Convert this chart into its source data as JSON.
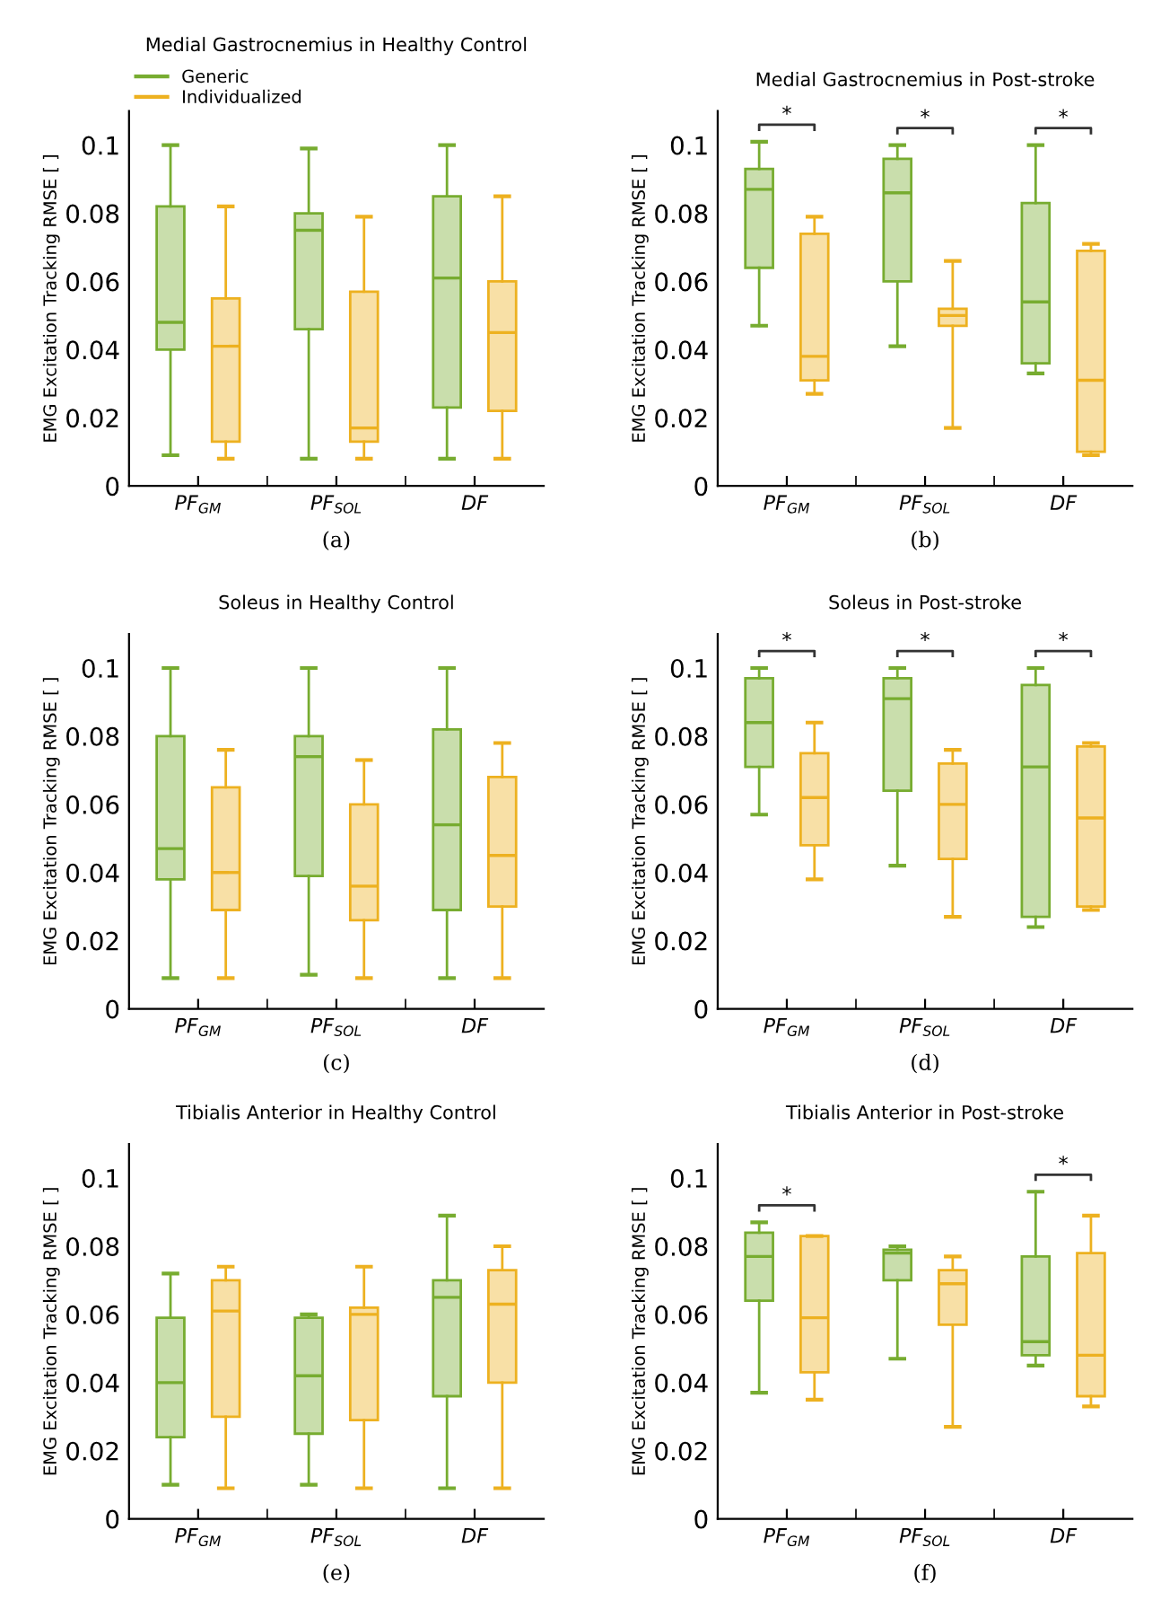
{
  "chart_data": [
    {
      "type": "box",
      "title": "Medial Gastrocnemius in Healthy Control",
      "ylabel": "EMG Excitation Tracking RMSE [ ]",
      "categories": [
        "PF$_{GM}$",
        "PF$_{SOL}$",
        "DF"
      ],
      "ylim": [
        0,
        0.11
      ],
      "yticks": [
        0,
        0.02,
        0.04,
        0.06,
        0.08,
        0.1
      ],
      "legend": "top left",
      "series": [
        {
          "name": "Generic",
          "color": "#77ac30",
          "boxes": [
            {
              "low": 0.009,
              "q1": 0.04,
              "median": 0.048,
              "q3": 0.082,
              "high": 0.1
            },
            {
              "low": 0.008,
              "q1": 0.046,
              "median": 0.075,
              "q3": 0.08,
              "high": 0.099
            },
            {
              "low": 0.008,
              "q1": 0.023,
              "median": 0.061,
              "q3": 0.085,
              "high": 0.1
            }
          ]
        },
        {
          "name": "Individualized",
          "color": "#edb120",
          "boxes": [
            {
              "low": 0.008,
              "q1": 0.013,
              "median": 0.041,
              "q3": 0.055,
              "high": 0.082
            },
            {
              "low": 0.008,
              "q1": 0.013,
              "median": 0.017,
              "q3": 0.057,
              "high": 0.079
            },
            {
              "low": 0.008,
              "q1": 0.022,
              "median": 0.045,
              "q3": 0.06,
              "high": 0.085
            }
          ]
        }
      ],
      "annotations": [
        "(a)"
      ]
    },
    {
      "type": "box",
      "title": "Medial Gastrocnemius in Post-stroke",
      "ylabel": "EMG Excitation Tracking RMSE [ ]",
      "categories": [
        "PF$_{GM}$",
        "PF$_{SOL}$",
        "DF"
      ],
      "ylim": [
        0,
        0.11
      ],
      "yticks": [
        0,
        0.02,
        0.04,
        0.06,
        0.08,
        0.1
      ],
      "series": [
        {
          "color": "#77ac30",
          "boxes": [
            {
              "low": 0.047,
              "q1": 0.064,
              "median": 0.087,
              "q3": 0.093,
              "high": 0.101
            },
            {
              "low": 0.041,
              "q1": 0.06,
              "median": 0.086,
              "q3": 0.096,
              "high": 0.1
            },
            {
              "low": 0.033,
              "q1": 0.036,
              "median": 0.054,
              "q3": 0.083,
              "high": 0.1
            }
          ]
        },
        {
          "color": "#edb120",
          "boxes": [
            {
              "low": 0.027,
              "q1": 0.031,
              "median": 0.038,
              "q3": 0.074,
              "high": 0.079
            },
            {
              "low": 0.017,
              "q1": 0.047,
              "median": 0.05,
              "q3": 0.052,
              "high": 0.066
            },
            {
              "low": 0.009,
              "q1": 0.01,
              "median": 0.031,
              "q3": 0.069,
              "high": 0.071
            }
          ]
        }
      ],
      "annotations": [
        "(b)",
        "*",
        "*",
        "*"
      ]
    },
    {
      "type": "box",
      "title": "Soleus in Healthy Control",
      "ylabel": "EMG Excitation Tracking RMSE [ ]",
      "categories": [
        "PF$_{GM}$",
        "PF$_{SOL}$",
        "DF"
      ],
      "ylim": [
        0,
        0.11
      ],
      "yticks": [
        0,
        0.02,
        0.04,
        0.06,
        0.08,
        0.1
      ],
      "series": [
        {
          "color": "#77ac30",
          "boxes": [
            {
              "low": 0.009,
              "q1": 0.038,
              "median": 0.047,
              "q3": 0.08,
              "high": 0.1
            },
            {
              "low": 0.01,
              "q1": 0.039,
              "median": 0.074,
              "q3": 0.08,
              "high": 0.1
            },
            {
              "low": 0.009,
              "q1": 0.029,
              "median": 0.054,
              "q3": 0.082,
              "high": 0.1
            }
          ]
        },
        {
          "color": "#edb120",
          "boxes": [
            {
              "low": 0.009,
              "q1": 0.029,
              "median": 0.04,
              "q3": 0.065,
              "high": 0.076
            },
            {
              "low": 0.009,
              "q1": 0.026,
              "median": 0.036,
              "q3": 0.06,
              "high": 0.073
            },
            {
              "low": 0.009,
              "q1": 0.03,
              "median": 0.045,
              "q3": 0.068,
              "high": 0.078
            }
          ]
        }
      ],
      "annotations": [
        "(c)"
      ]
    },
    {
      "type": "box",
      "title": "Soleus in Post-stroke",
      "ylabel": "EMG Excitation Tracking RMSE [ ]",
      "categories": [
        "PF$_{GM}$",
        "PF$_{SOL}$",
        "DF"
      ],
      "ylim": [
        0,
        0.11
      ],
      "yticks": [
        0,
        0.02,
        0.04,
        0.06,
        0.08,
        0.1
      ],
      "series": [
        {
          "color": "#77ac30",
          "boxes": [
            {
              "low": 0.057,
              "q1": 0.071,
              "median": 0.084,
              "q3": 0.097,
              "high": 0.1
            },
            {
              "low": 0.042,
              "q1": 0.064,
              "median": 0.091,
              "q3": 0.097,
              "high": 0.1
            },
            {
              "low": 0.024,
              "q1": 0.027,
              "median": 0.071,
              "q3": 0.095,
              "high": 0.1
            }
          ]
        },
        {
          "color": "#edb120",
          "boxes": [
            {
              "low": 0.038,
              "q1": 0.048,
              "median": 0.062,
              "q3": 0.075,
              "high": 0.084
            },
            {
              "low": 0.027,
              "q1": 0.044,
              "median": 0.06,
              "q3": 0.072,
              "high": 0.076
            },
            {
              "low": 0.029,
              "q1": 0.03,
              "median": 0.056,
              "q3": 0.077,
              "high": 0.078
            }
          ]
        }
      ],
      "annotations": [
        "(d)",
        "*",
        "*",
        "*"
      ]
    },
    {
      "type": "box",
      "title": "Tibialis Anterior in Healthy Control",
      "ylabel": "EMG Excitation Tracking RMSE [ ]",
      "categories": [
        "PF$_{GM}$",
        "PF$_{SOL}$",
        "DF"
      ],
      "ylim": [
        0,
        0.11
      ],
      "yticks": [
        0,
        0.02,
        0.04,
        0.06,
        0.08,
        0.1
      ],
      "series": [
        {
          "color": "#77ac30",
          "boxes": [
            {
              "low": 0.01,
              "q1": 0.024,
              "median": 0.04,
              "q3": 0.059,
              "high": 0.072
            },
            {
              "low": 0.01,
              "q1": 0.025,
              "median": 0.042,
              "q3": 0.059,
              "high": 0.06
            },
            {
              "low": 0.009,
              "q1": 0.036,
              "median": 0.065,
              "q3": 0.07,
              "high": 0.089
            }
          ]
        },
        {
          "color": "#edb120",
          "boxes": [
            {
              "low": 0.009,
              "q1": 0.03,
              "median": 0.061,
              "q3": 0.07,
              "high": 0.074
            },
            {
              "low": 0.009,
              "q1": 0.029,
              "median": 0.06,
              "q3": 0.062,
              "high": 0.074
            },
            {
              "low": 0.009,
              "q1": 0.04,
              "median": 0.063,
              "q3": 0.073,
              "high": 0.08
            }
          ]
        }
      ],
      "annotations": [
        "(e)"
      ]
    },
    {
      "type": "box",
      "title": "Tibialis Anterior in Post-stroke",
      "ylabel": "EMG Excitation Tracking RMSE [ ]",
      "categories": [
        "PF$_{GM}$",
        "PF$_{SOL}$",
        "DF"
      ],
      "ylim": [
        0,
        0.11
      ],
      "yticks": [
        0,
        0.02,
        0.04,
        0.06,
        0.08,
        0.1
      ],
      "series": [
        {
          "color": "#77ac30",
          "boxes": [
            {
              "low": 0.037,
              "q1": 0.064,
              "median": 0.077,
              "q3": 0.084,
              "high": 0.087
            },
            {
              "low": 0.047,
              "q1": 0.07,
              "median": 0.078,
              "q3": 0.079,
              "high": 0.08
            },
            {
              "low": 0.045,
              "q1": 0.048,
              "median": 0.052,
              "q3": 0.077,
              "high": 0.096
            }
          ]
        },
        {
          "color": "#edb120",
          "boxes": [
            {
              "low": 0.035,
              "q1": 0.043,
              "median": 0.059,
              "q3": 0.083,
              "high": 0.083
            },
            {
              "low": 0.027,
              "q1": 0.057,
              "median": 0.069,
              "q3": 0.073,
              "high": 0.077
            },
            {
              "low": 0.033,
              "q1": 0.036,
              "median": 0.048,
              "q3": 0.078,
              "high": 0.089
            }
          ]
        }
      ],
      "annotations": [
        "(f)",
        "*",
        "*"
      ]
    }
  ]
}
